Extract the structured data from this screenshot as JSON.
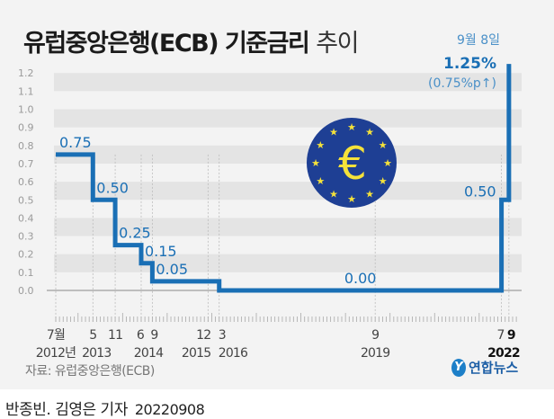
{
  "title_bold": "유럽중앙은행(ECB) 기준금리",
  "title_light": "추이",
  "source": "자료: 유럽중앙은행(ECB)",
  "logo_text": "연합뉴스",
  "credit": "반종빈. 김영은 기자",
  "credit_date": "20220908",
  "colors": {
    "line": "#1a6fb5",
    "band": "#e4e4e4",
    "background": "#f3f3f3",
    "emblem": "#1e3f94",
    "star": "#f5e23a"
  },
  "emblem_icon": "euro-emblem",
  "chart_data": {
    "type": "line",
    "step": true,
    "ylim": [
      0,
      1.2
    ],
    "yticks": [
      "0.0",
      "0.1",
      "0.2",
      "0.3",
      "0.4",
      "0.5",
      "0.6",
      "0.7",
      "0.8",
      "0.9",
      "1.0",
      "1.1",
      "1.2"
    ],
    "grid": "alternating horizontal bands",
    "points": [
      {
        "date": "2012-07",
        "value": 0.75,
        "label": "0.75"
      },
      {
        "date": "2013-05",
        "value": 0.5,
        "label": "0.50"
      },
      {
        "date": "2013-11",
        "value": 0.25,
        "label": "0.25"
      },
      {
        "date": "2014-06",
        "value": 0.15,
        "label": "0.15"
      },
      {
        "date": "2014-09",
        "value": 0.05,
        "label": "0.05"
      },
      {
        "date": "2016-03",
        "value": 0.0,
        "label": "0.00"
      },
      {
        "date": "2022-07",
        "value": 0.5,
        "label": "0.50"
      },
      {
        "date": "2022-09",
        "value": 1.25,
        "label": "1.25%"
      }
    ],
    "x_tick_labels": [
      {
        "date": "2012-07",
        "month": "7월",
        "year": "2012년"
      },
      {
        "date": "2013-05",
        "month": "5",
        "year": "2013"
      },
      {
        "date": "2013-11",
        "month": "11",
        "year": ""
      },
      {
        "date": "2014-06",
        "month": "6",
        "year": "2014"
      },
      {
        "date": "2014-09",
        "month": "9",
        "year": ""
      },
      {
        "date": "2015-12",
        "month": "12",
        "year": "2015"
      },
      {
        "date": "2016-03",
        "month": "3",
        "year": "2016"
      },
      {
        "date": "2019-09",
        "month": "9",
        "year": "2019"
      },
      {
        "date": "2022-07",
        "month": "7",
        "year": ""
      },
      {
        "date": "2022-09",
        "month": "9",
        "year": "2022"
      }
    ],
    "annotation": {
      "date": "9월 8일",
      "value": "1.25%",
      "change": "(0.75%p↑)"
    }
  }
}
